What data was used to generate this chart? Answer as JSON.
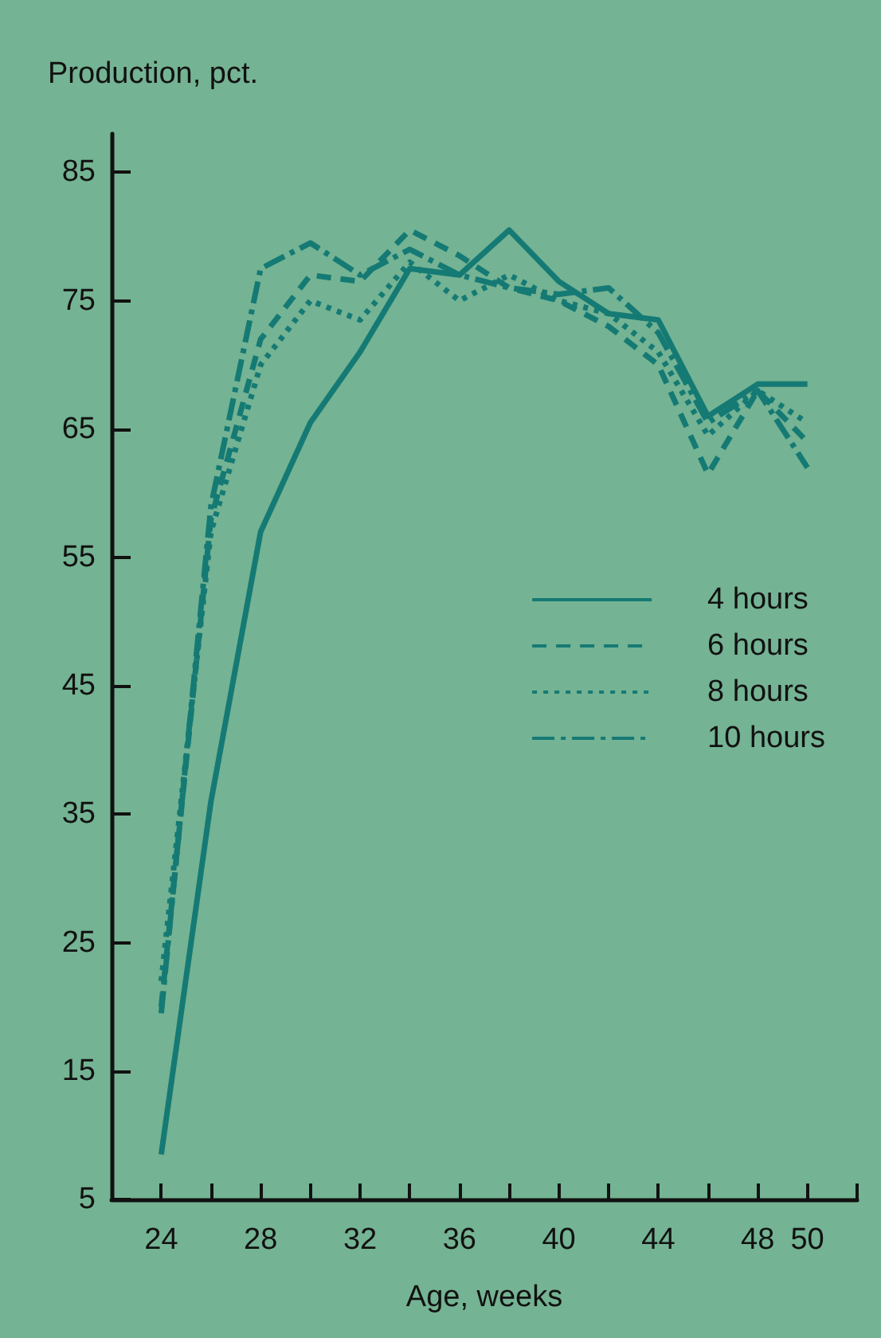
{
  "chart_data": {
    "type": "line",
    "xlabel": "Age, weeks",
    "ylabel": "Production, pct.",
    "x": [
      24,
      26,
      28,
      30,
      32,
      34,
      36,
      38,
      40,
      42,
      44,
      46,
      48,
      50
    ],
    "xlim": [
      22,
      52
    ],
    "xticks": [
      24,
      {
        "value": 26,
        "label": null
      },
      28,
      {
        "value": 30,
        "label": null
      },
      32,
      {
        "value": 34,
        "label": null
      },
      36,
      {
        "value": 38,
        "label": null
      },
      40,
      {
        "value": 42,
        "label": null
      },
      44,
      {
        "value": 46,
        "label": null
      },
      48,
      50,
      {
        "value": 52,
        "label": null
      }
    ],
    "ylim": [
      5,
      88
    ],
    "yticks": [
      5,
      15,
      25,
      35,
      45,
      55,
      65,
      75,
      85
    ],
    "grid": false,
    "legend": "right",
    "marker": "none",
    "series": [
      {
        "name": "4 hours",
        "color": "#157a74",
        "line_style": "solid",
        "values": [
          8.5,
          36,
          57,
          65.5,
          71,
          77.5,
          77,
          80.5,
          76.5,
          74,
          73.5,
          66,
          68.5,
          68.5
        ]
      },
      {
        "name": "6 hours",
        "color": "#157a74",
        "line_style": "dashed",
        "values": [
          20,
          58,
          72,
          77,
          76.5,
          80.5,
          78.5,
          76,
          75,
          73,
          70,
          61.5,
          68,
          64
        ]
      },
      {
        "name": "8 hours",
        "color": "#157a74",
        "line_style": "dotted",
        "values": [
          22,
          57,
          70,
          75,
          73.5,
          78,
          75,
          77,
          75,
          74,
          71,
          64.5,
          68,
          65.5
        ]
      },
      {
        "name": "10 hours",
        "color": "#157a74",
        "line_style": "dashdot",
        "values": [
          19.5,
          59,
          77.5,
          79.5,
          77,
          79,
          77,
          76,
          75.5,
          76,
          72.5,
          65.5,
          68,
          62
        ]
      }
    ]
  }
}
